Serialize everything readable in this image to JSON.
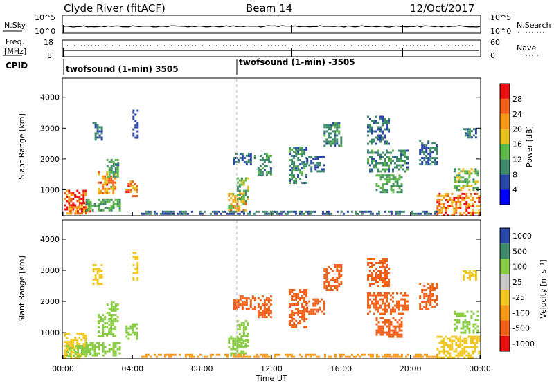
{
  "header": {
    "title": "Clyde River (fitACF)",
    "beam": "Beam 14",
    "date": "12/Oct/2017"
  },
  "noise_panel": {
    "left_label": "N.Sky",
    "right_label": "N.Search",
    "left_ticks": [
      "10^5",
      "10^0"
    ],
    "right_ticks": [
      "10^5",
      "10^0"
    ]
  },
  "freq_panel": {
    "left_label_top": "Freq.",
    "left_label_bottom": "[MHz]",
    "left_ticks": [
      "18",
      "8"
    ],
    "right_label": "Nave",
    "right_ticks": [
      "60",
      "0"
    ]
  },
  "cpid_panel": {
    "label": "CPID",
    "segments": [
      {
        "text": "twofsound (1-min) 3505",
        "start_hour": 0
      },
      {
        "text": "twofsound (1-min) -3505",
        "start_hour": 10
      }
    ]
  },
  "colors": {
    "power_scale": [
      "#0000ff",
      "#2a46a8",
      "#3f8a6a",
      "#5fb84a",
      "#e8c020",
      "#f59a18",
      "#f06018",
      "#e81010"
    ],
    "velocity_scale": [
      "#e81010",
      "#f06018",
      "#f59a18",
      "#f0c820",
      "#c8c8c8",
      "#88cc44",
      "#3f8a6a",
      "#2a46a8"
    ]
  },
  "chart_data": [
    {
      "type": "heatmap",
      "name": "power",
      "ylabel": "Slant Range [km]",
      "yticks": [
        1000,
        2000,
        3000,
        4000
      ],
      "ylim": [
        180,
        4600
      ],
      "xlim": [
        0,
        24
      ],
      "colorbar": {
        "label": "Power [dB]",
        "ticks": [
          4,
          8,
          12,
          16,
          20,
          24,
          28
        ],
        "range": [
          0,
          32
        ]
      },
      "regions": [
        {
          "x0": 0.05,
          "x1": 1.3,
          "y0": 200,
          "y1": 1000,
          "value": 28
        },
        {
          "x0": 0.2,
          "x1": 1.6,
          "y0": 250,
          "y1": 600,
          "value": 26
        },
        {
          "x0": 1.3,
          "x1": 3.3,
          "y0": 300,
          "y1": 700,
          "value": 12
        },
        {
          "x0": 2.0,
          "x1": 3.0,
          "y0": 900,
          "y1": 1600,
          "value": 22
        },
        {
          "x0": 2.5,
          "x1": 3.2,
          "y0": 1400,
          "y1": 2000,
          "value": 12
        },
        {
          "x0": 3.6,
          "x1": 4.2,
          "y0": 800,
          "y1": 1300,
          "value": 24
        },
        {
          "x0": 1.7,
          "x1": 2.2,
          "y0": 2600,
          "y1": 3200,
          "value": 8
        },
        {
          "x0": 4.0,
          "x1": 4.3,
          "y0": 2700,
          "y1": 3600,
          "value": 6
        },
        {
          "x0": 3.0,
          "x1": 3.2,
          "y0": 1800,
          "y1": 1900,
          "value": 8
        },
        {
          "x0": 9.5,
          "x1": 10.5,
          "y0": 300,
          "y1": 900,
          "value": 20
        },
        {
          "x0": 10.0,
          "x1": 10.6,
          "y0": 600,
          "y1": 1400,
          "value": 14
        },
        {
          "x0": 9.8,
          "x1": 11.0,
          "y0": 1800,
          "y1": 2200,
          "value": 8
        },
        {
          "x0": 11.2,
          "x1": 12.0,
          "y0": 1500,
          "y1": 2200,
          "value": 10
        },
        {
          "x0": 13.0,
          "x1": 14.0,
          "y0": 1200,
          "y1": 2400,
          "value": 10
        },
        {
          "x0": 14.0,
          "x1": 15.0,
          "y0": 1600,
          "y1": 2100,
          "value": 8
        },
        {
          "x0": 15.0,
          "x1": 16.0,
          "y0": 2400,
          "y1": 3200,
          "value": 10
        },
        {
          "x0": 17.5,
          "x1": 19.8,
          "y0": 1600,
          "y1": 2300,
          "value": 10
        },
        {
          "x0": 18.0,
          "x1": 19.5,
          "y0": 900,
          "y1": 1500,
          "value": 12
        },
        {
          "x0": 17.5,
          "x1": 18.8,
          "y0": 2500,
          "y1": 3400,
          "value": 8
        },
        {
          "x0": 20.5,
          "x1": 21.5,
          "y0": 1800,
          "y1": 2600,
          "value": 8
        },
        {
          "x0": 21.5,
          "x1": 23.9,
          "y0": 200,
          "y1": 900,
          "value": 24
        },
        {
          "x0": 22.5,
          "x1": 23.9,
          "y0": 1000,
          "y1": 1700,
          "value": 14
        },
        {
          "x0": 23.0,
          "x1": 23.8,
          "y0": 2700,
          "y1": 3000,
          "value": 8
        },
        {
          "x0": 4.5,
          "x1": 21.5,
          "y0": 200,
          "y1": 320,
          "value": 8
        }
      ]
    },
    {
      "type": "heatmap",
      "name": "velocity",
      "ylabel": "Slant Range [km]",
      "xlabel": "Time UT",
      "xticks": [
        "00:00",
        "04:00",
        "08:00",
        "12:00",
        "16:00",
        "20:00",
        "00:00"
      ],
      "yticks": [
        1000,
        2000,
        3000,
        4000
      ],
      "ylim": [
        180,
        4600
      ],
      "xlim": [
        0,
        24
      ],
      "colorbar": {
        "label": "Velocity [m s⁻¹]",
        "ticks": [
          "1000",
          "500",
          "100",
          "25",
          "-25",
          "-100",
          "-500",
          "-1000"
        ]
      },
      "regions": [
        {
          "x0": 0.05,
          "x1": 1.3,
          "y0": 200,
          "y1": 1000,
          "value": 0
        },
        {
          "x0": 0.2,
          "x1": 1.6,
          "y0": 250,
          "y1": 600,
          "value": 200
        },
        {
          "x0": 1.3,
          "x1": 3.3,
          "y0": 300,
          "y1": 700,
          "value": 300
        },
        {
          "x0": 2.0,
          "x1": 3.0,
          "y0": 900,
          "y1": 1600,
          "value": 300
        },
        {
          "x0": 2.5,
          "x1": 3.2,
          "y0": 1400,
          "y1": 2000,
          "value": 300
        },
        {
          "x0": 3.6,
          "x1": 4.2,
          "y0": 800,
          "y1": 1300,
          "value": 300
        },
        {
          "x0": 1.7,
          "x1": 2.2,
          "y0": 2600,
          "y1": 3200,
          "value": 0
        },
        {
          "x0": 4.0,
          "x1": 4.3,
          "y0": 2700,
          "y1": 3600,
          "value": 0
        },
        {
          "x0": 9.5,
          "x1": 10.5,
          "y0": 300,
          "y1": 900,
          "value": 300
        },
        {
          "x0": 10.0,
          "x1": 10.6,
          "y0": 600,
          "y1": 1400,
          "value": 150
        },
        {
          "x0": 9.8,
          "x1": 11.0,
          "y0": 1800,
          "y1": 2200,
          "value": -300
        },
        {
          "x0": 11.2,
          "x1": 12.0,
          "y0": 1500,
          "y1": 2200,
          "value": -300
        },
        {
          "x0": 13.0,
          "x1": 14.0,
          "y0": 1200,
          "y1": 2400,
          "value": -300
        },
        {
          "x0": 14.0,
          "x1": 15.0,
          "y0": 1600,
          "y1": 2100,
          "value": -150
        },
        {
          "x0": 15.0,
          "x1": 16.0,
          "y0": 2400,
          "y1": 3200,
          "value": -300
        },
        {
          "x0": 17.5,
          "x1": 19.8,
          "y0": 1600,
          "y1": 2300,
          "value": -300
        },
        {
          "x0": 18.0,
          "x1": 19.5,
          "y0": 900,
          "y1": 1500,
          "value": -300
        },
        {
          "x0": 17.5,
          "x1": 18.8,
          "y0": 2500,
          "y1": 3400,
          "value": -300
        },
        {
          "x0": 20.5,
          "x1": 21.5,
          "y0": 1800,
          "y1": 2600,
          "value": -150
        },
        {
          "x0": 21.5,
          "x1": 23.9,
          "y0": 200,
          "y1": 900,
          "value": 0
        },
        {
          "x0": 22.5,
          "x1": 23.9,
          "y0": 1000,
          "y1": 1700,
          "value": 300
        },
        {
          "x0": 23.0,
          "x1": 23.8,
          "y0": 2700,
          "y1": 3000,
          "value": 0
        },
        {
          "x0": 4.5,
          "x1": 21.5,
          "y0": 200,
          "y1": 320,
          "value": -50
        }
      ]
    }
  ]
}
